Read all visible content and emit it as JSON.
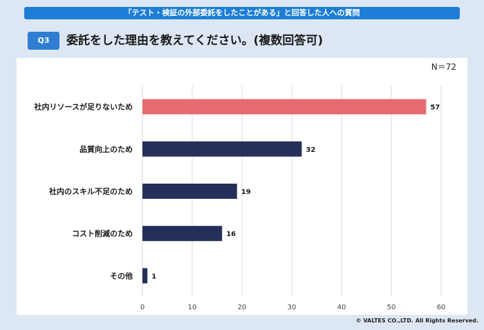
{
  "header": {
    "banner": "「テスト・検証の外部委託をしたことがある」と回答した人への質問",
    "q_label": "Q3",
    "question": "委託をした理由を教えてください。(複数回答可)"
  },
  "n_label": "N＝72",
  "copyright": "© VALTES CO.,LTD. All Rights Reserved.",
  "colors": {
    "highlight": "#e56b70",
    "bar": "#262f59",
    "grid": "#d9d9d9"
  },
  "chart_data": {
    "type": "bar",
    "orientation": "horizontal",
    "title": "委託をした理由を教えてください。(複数回答可)",
    "categories": [
      "社内リソースが足りないため",
      "品質向上のため",
      "社内のスキル不足のため",
      "コスト削減のため",
      "その他"
    ],
    "values": [
      57,
      32,
      19,
      16,
      1
    ],
    "highlight_index": 0,
    "xlim": [
      0,
      60
    ],
    "xticks": [
      0,
      10,
      20,
      30,
      40,
      50,
      60
    ],
    "grid": true
  }
}
